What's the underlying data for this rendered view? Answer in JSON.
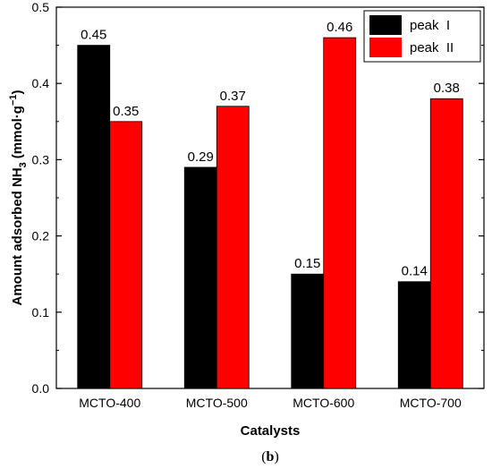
{
  "chart_data": {
    "type": "bar",
    "categories": [
      "MCTO-400",
      "MCTO-500",
      "MCTO-600",
      "MCTO-700"
    ],
    "series": [
      {
        "name": "peak  I",
        "values": [
          0.45,
          0.29,
          0.15,
          0.14
        ],
        "color": "#000000"
      },
      {
        "name": "peak  II",
        "values": [
          0.35,
          0.37,
          0.46,
          0.38
        ],
        "color": "#ff0000"
      }
    ],
    "data_labels": [
      [
        "0.45",
        "0.29",
        "0.15",
        "0.14"
      ],
      [
        "0.35",
        "0.37",
        "0.46",
        "0.38"
      ]
    ],
    "xlabel": "Catalysts",
    "ylabel": "Amount adsorbed NH",
    "ylabel_subscript": "3",
    "ylabel_units": "(mmol·g",
    "ylabel_units_superscript": "−1",
    "ylabel_units_close": ")",
    "ylim": [
      0.0,
      0.5
    ],
    "yticks": [
      "0.0",
      "0.1",
      "0.2",
      "0.3",
      "0.4",
      "0.5"
    ],
    "legend_position": "top-right",
    "grid": false
  },
  "caption": {
    "open": "(",
    "letter": "b",
    "close": ")"
  }
}
